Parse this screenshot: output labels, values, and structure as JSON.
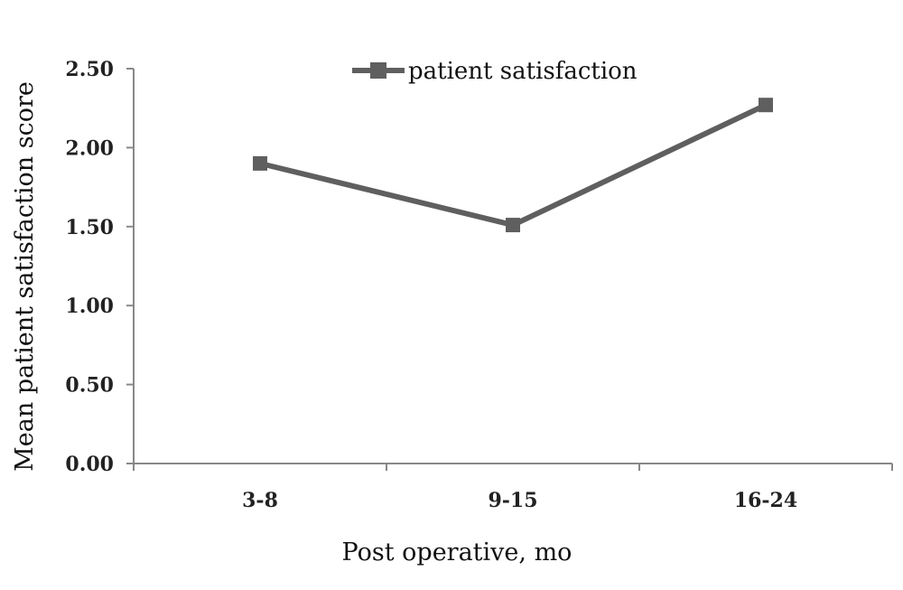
{
  "chart_data": {
    "type": "line",
    "categories": [
      "3-8",
      "9-15",
      "16-24"
    ],
    "series": [
      {
        "name": "patient satisfaction",
        "values": [
          1.9,
          1.51,
          2.27
        ]
      }
    ],
    "yticks": [
      "0.00",
      "0.50",
      "1.00",
      "1.50",
      "2.00",
      "2.50"
    ],
    "ylim": [
      0,
      2.5
    ],
    "xlabel": "Post operative, mo",
    "ylabel": "Mean patient satisfaction score",
    "legend_position": "top-center",
    "grid": false,
    "colors": {
      "series": "#5f5f5f",
      "axis": "#888888"
    }
  }
}
